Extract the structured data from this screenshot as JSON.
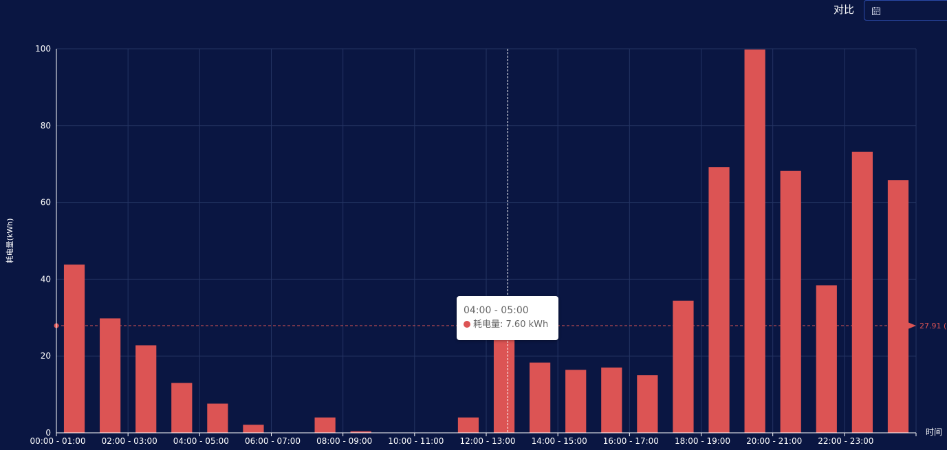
{
  "header": {
    "compare_label": "对比"
  },
  "date_picker": {
    "icon": "calendar-icon"
  },
  "tooltip": {
    "title": "04:00 - 05:00",
    "series_label": "耗电量",
    "value_text": "7.60 kWh"
  },
  "colors": {
    "background": "#0a1642",
    "bar": "#dc5454",
    "grid": "#243463",
    "axis_text": "#ffffff",
    "mark_line": "#dc5454"
  },
  "chart_data": {
    "type": "bar",
    "ylabel": "耗电量(kWh)",
    "xlabel": "时间",
    "ylim": [
      0,
      100
    ],
    "yticks": [
      0,
      20,
      40,
      60,
      80,
      100
    ],
    "grid": true,
    "categories": [
      "00:00 - 01:00",
      "01:00 - 02:00",
      "02:00 - 03:00",
      "03:00 - 04:00",
      "04:00 - 05:00",
      "05:00 - 06:00",
      "06:00 - 07:00",
      "07:00 - 08:00",
      "08:00 - 09:00",
      "09:00 - 10:00",
      "10:00 - 11:00",
      "11:00 - 12:00",
      "12:00 - 13:00",
      "13:00 - 14:00",
      "14:00 - 15:00",
      "15:00 - 16:00",
      "16:00 - 17:00",
      "17:00 - 18:00",
      "18:00 - 19:00",
      "19:00 - 20:00",
      "20:00 - 21:00",
      "21:00 - 22:00",
      "22:00 - 23:00",
      "23:00 - 24:00"
    ],
    "visible_tick_labels": [
      "00:00 - 01:00",
      "02:00 - 03:00",
      "04:00 - 05:00",
      "06:00 - 07:00",
      "08:00 - 09:00",
      "10:00 - 11:00",
      "12:00 - 13:00",
      "14:00 - 15:00",
      "16:00 - 17:00",
      "18:00 - 19:00",
      "20:00 - 21:00",
      "22:00 - 23:00"
    ],
    "series": [
      {
        "name": "耗电量",
        "values": [
          43.8,
          29.8,
          22.8,
          13.0,
          7.6,
          2.1,
          0,
          4.0,
          0.4,
          0,
          0,
          4.0,
          27.5,
          18.3,
          16.4,
          17.0,
          15.0,
          34.4,
          69.2,
          99.8,
          68.2,
          38.4,
          73.2,
          65.8
        ]
      }
    ],
    "average_line": {
      "value": 27.91,
      "label": "27.91 (",
      "style": "dashed"
    },
    "crosshair_category_index": 12.6
  }
}
